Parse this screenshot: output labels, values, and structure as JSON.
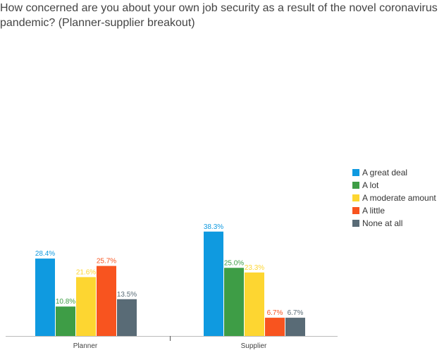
{
  "title": "How concerned are you about your own job security as a result of the novel coronavirus pandemic? (Planner-supplier breakout)",
  "chart_data": {
    "type": "bar",
    "title": "How concerned are you about your own job security as a result of the novel coronavirus pandemic? (Planner-supplier breakout)",
    "categories": [
      "Planner",
      "Supplier"
    ],
    "series": [
      {
        "name": "A great deal",
        "color": "#0f9ae0",
        "values": [
          28.4,
          38.3
        ],
        "labels": [
          "28.4%",
          "38.3%"
        ]
      },
      {
        "name": "A lot",
        "color": "#3e9d46",
        "values": [
          10.8,
          25.0
        ],
        "labels": [
          "10.8%",
          "25.0%"
        ]
      },
      {
        "name": "A moderate amount",
        "color": "#fdd631",
        "values": [
          21.6,
          23.3
        ],
        "labels": [
          "21.6%",
          "23.3%"
        ]
      },
      {
        "name": "A little",
        "color": "#f8541f",
        "values": [
          25.7,
          6.7
        ],
        "labels": [
          "25.7%",
          "6.7%"
        ]
      },
      {
        "name": "None at all",
        "color": "#596b76",
        "values": [
          13.5,
          6.7
        ],
        "labels": [
          "13.5%",
          "6.7%"
        ]
      }
    ],
    "ylim": [
      0,
      100
    ],
    "value_unit": "%",
    "grid": false,
    "legend": "right"
  }
}
